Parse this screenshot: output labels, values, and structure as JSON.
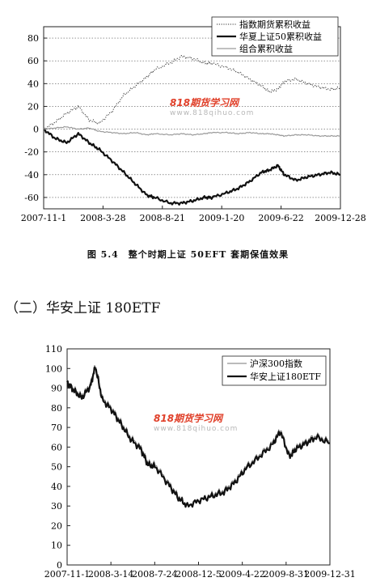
{
  "watermark": {
    "logo": "818期货学习网",
    "url": "www.818qihuo.com"
  },
  "figure1": {
    "caption": "图 5.4　整个时期上证 50EFT 套期保值效果",
    "chart_data": {
      "type": "line",
      "title": "",
      "xlabel": "",
      "ylabel": "",
      "ylim": [
        -70,
        90
      ],
      "y_ticks": [
        80,
        60,
        40,
        20,
        0,
        -20,
        -40,
        -60
      ],
      "grid": "horizontal dotted",
      "legend_position": "top-right",
      "x_tick_labels": [
        "2007-11-1",
        "2008-3-28",
        "2008-8-21",
        "2009-1-20",
        "2009-6-22",
        "2009-12-28"
      ],
      "x": [
        "2007-11-1",
        "2007-12-1",
        "2008-1-1",
        "2008-2-1",
        "2008-3-1",
        "2008-3-28",
        "2008-5-1",
        "2008-6-1",
        "2008-7-1",
        "2008-8-1",
        "2008-8-21",
        "2008-10-1",
        "2008-11-1",
        "2008-12-1",
        "2009-1-1",
        "2009-1-20",
        "2009-3-1",
        "2009-4-1",
        "2009-5-1",
        "2009-6-1",
        "2009-6-22",
        "2009-7-15",
        "2009-8-1",
        "2009-9-1",
        "2009-10-1",
        "2009-11-1",
        "2009-12-1",
        "2009-12-28"
      ],
      "series": [
        {
          "name": "指数期货累积收益",
          "style": "dotted",
          "values": [
            0,
            6,
            14,
            20,
            8,
            5,
            16,
            30,
            38,
            46,
            52,
            58,
            64,
            62,
            58,
            58,
            54,
            50,
            44,
            38,
            33,
            35,
            42,
            44,
            40,
            37,
            35,
            36
          ]
        },
        {
          "name": "华夏上证50累积收益",
          "style": "solid-thick",
          "values": [
            0,
            -8,
            -12,
            -4,
            -12,
            -18,
            -28,
            -38,
            -48,
            -58,
            -60,
            -65,
            -65,
            -63,
            -60,
            -60,
            -56,
            -52,
            -46,
            -38,
            -36,
            -32,
            -40,
            -45,
            -42,
            -40,
            -38,
            -40
          ]
        },
        {
          "name": "组合累积收益",
          "style": "solid-gray",
          "values": [
            0,
            1,
            2,
            0,
            1,
            -2,
            -3,
            -4,
            -3,
            -5,
            -4,
            -5,
            -4,
            -5,
            -4,
            -3,
            -3,
            -4,
            -3,
            -4,
            -4,
            -5,
            -6,
            -5,
            -5,
            -6,
            -6,
            -6
          ]
        }
      ]
    }
  },
  "section_heading": "（二）华安上证 180ETF",
  "figure2": {
    "chart_data": {
      "type": "line",
      "title": "",
      "xlabel": "",
      "ylabel": "",
      "ylim": [
        0,
        110
      ],
      "y_ticks": [
        110,
        100,
        90,
        80,
        70,
        60,
        50,
        40,
        30,
        20,
        10,
        0
      ],
      "grid": "none",
      "legend_position": "top-right",
      "x_tick_labels": [
        "2007-11-1",
        "2008-3-14",
        "2008-7-24",
        "2008-12-5",
        "2009-4-22",
        "2009-8-31",
        "2009-12-31"
      ],
      "x": [
        "2007-11-1",
        "2007-11-20",
        "2007-12-15",
        "2008-1-10",
        "2008-1-25",
        "2008-2-15",
        "2008-3-14",
        "2008-4-10",
        "2008-5-10",
        "2008-6-10",
        "2008-7-1",
        "2008-7-24",
        "2008-9-1",
        "2008-10-1",
        "2008-10-28",
        "2008-12-5",
        "2009-1-10",
        "2009-2-15",
        "2009-3-20",
        "2009-4-22",
        "2009-6-1",
        "2009-7-10",
        "2009-8-4",
        "2009-8-31",
        "2009-9-20",
        "2009-10-20",
        "2009-11-20",
        "2009-12-31"
      ],
      "series": [
        {
          "name": "沪深300指数",
          "style": "thin",
          "values": [
            93,
            90,
            86,
            92,
            102,
            85,
            80,
            73,
            65,
            60,
            52,
            51,
            42,
            35,
            30,
            33,
            36,
            38,
            43,
            50,
            56,
            62,
            69,
            56,
            60,
            63,
            66,
            63
          ]
        },
        {
          "name": "华安上证180ETF",
          "style": "thick",
          "values": [
            93,
            89,
            85,
            91,
            101,
            84,
            79,
            72,
            64,
            59,
            51,
            50,
            41,
            34,
            30,
            33,
            35,
            37,
            42,
            49,
            55,
            61,
            68,
            55,
            59,
            62,
            65,
            62
          ]
        }
      ]
    }
  }
}
